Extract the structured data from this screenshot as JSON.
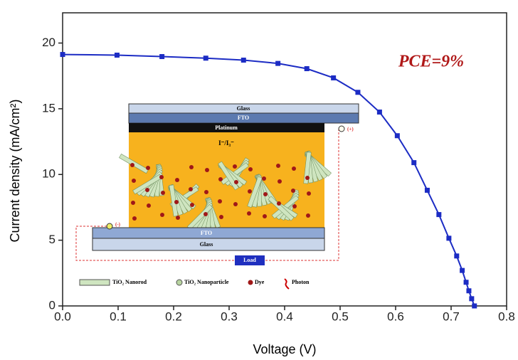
{
  "chart_data": {
    "type": "line",
    "x_label": "Voltage (V)",
    "y_label": "Current density (mA/cm²)",
    "annotation": "PCE=9%",
    "x": [
      0.0,
      0.098,
      0.179,
      0.258,
      0.326,
      0.388,
      0.44,
      0.488,
      0.532,
      0.571,
      0.603,
      0.633,
      0.657,
      0.678,
      0.696,
      0.71,
      0.72,
      0.727,
      0.732,
      0.737,
      0.742
    ],
    "series": [
      {
        "color": "#1c2cc4",
        "values": [
          19.13,
          19.08,
          18.97,
          18.85,
          18.7,
          18.45,
          18.05,
          17.35,
          16.25,
          14.75,
          12.95,
          10.9,
          8.8,
          6.95,
          5.15,
          3.8,
          2.7,
          1.8,
          1.15,
          0.55,
          0
        ]
      }
    ],
    "xlim": [
      0,
      0.8
    ],
    "ylim": [
      0,
      22.3
    ],
    "xticks": [
      {
        "value": 0,
        "label": "0.0"
      },
      0.1,
      0.2,
      0.3,
      0.4,
      0.5,
      0.6,
      0.7,
      0.8
    ],
    "yticks": [
      0,
      5,
      10,
      15,
      20
    ],
    "inset": {
      "top_glass": "Glass",
      "top_fto": "FTO",
      "platinum": "Platinum",
      "electrolyte": "I⁻/I₃⁻",
      "bottom_fto": "FTO",
      "bottom_glass": "Glass",
      "load": "Load",
      "plus": "(+)",
      "minus": "(-)",
      "legend": [
        "TiO₂ Nanorod",
        "TiO₂ Nanoparticle",
        "Dye",
        "Photon"
      ]
    }
  }
}
